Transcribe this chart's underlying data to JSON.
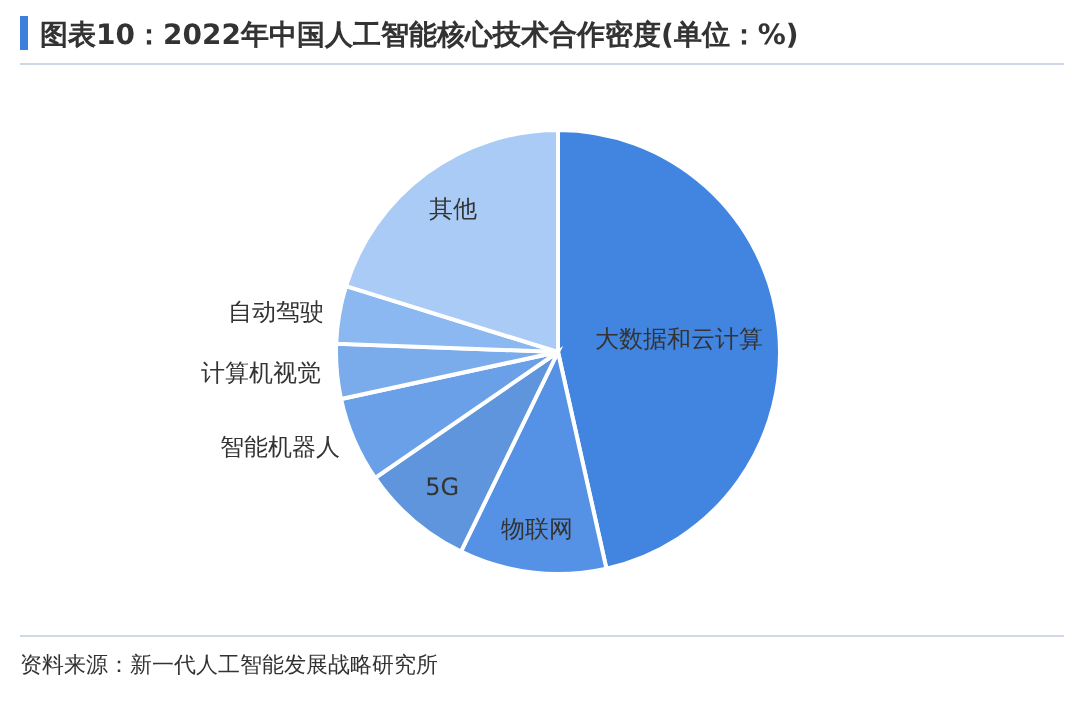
{
  "chart_data": {
    "type": "pie",
    "title": "图表10：2022年中国人工智能核心技术合作密度(单位：%)",
    "categories": [
      "大数据和云计算",
      "物联网",
      "5G",
      "智能机器人",
      "计算机视觉",
      "自动驾驶",
      "其他"
    ],
    "values": [
      46.5,
      10.7,
      8.2,
      6.2,
      4,
      4.2,
      20.2
    ],
    "colors": [
      "#4285e0",
      "#5592e6",
      "#5f95dc",
      "#6aa0e8",
      "#7aabeb",
      "#8bb8f0",
      "#a9cbf5"
    ],
    "annotations": [
      "资料来源：新一代人工智能发展战略研究所"
    ],
    "legend": false
  }
}
